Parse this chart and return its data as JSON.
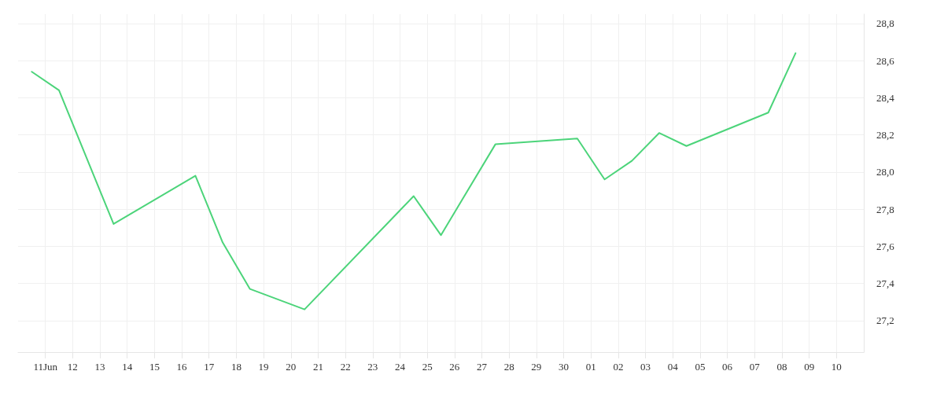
{
  "chart_data": {
    "type": "line",
    "x": [
      "--06-10T12:00",
      "--06-11T12:00",
      "--06-13T12:00",
      "--06-16T12:00",
      "--06-17T12:00",
      "--06-18T12:00",
      "--06-20T12:00",
      "--06-24T12:00",
      "--06-25T12:00",
      "--06-27T12:00",
      "--06-30T12:00",
      "--07-01T12:00",
      "--07-02T12:00",
      "--07-03T12:00",
      "--07-04T12:00",
      "--07-07T12:00",
      "--07-08T12:00"
    ],
    "series": [
      {
        "color": "#4cd47a",
        "values": [
          28.54,
          28.44,
          27.72,
          27.98,
          27.62,
          27.37,
          27.26,
          27.87,
          27.66,
          28.15,
          28.18,
          27.96,
          28.06,
          28.21,
          28.14,
          28.32,
          28.64
        ]
      }
    ],
    "xlim": [
      "--06-10",
      "--07-11"
    ],
    "xticks": [
      {
        "value": "--06-11",
        "label": "11Jun"
      },
      {
        "value": "--06-12",
        "label": "12"
      },
      {
        "value": "--06-13",
        "label": "13"
      },
      {
        "value": "--06-14",
        "label": "14"
      },
      {
        "value": "--06-15",
        "label": "15"
      },
      {
        "value": "--06-16",
        "label": "16"
      },
      {
        "value": "--06-17",
        "label": "17"
      },
      {
        "value": "--06-18",
        "label": "18"
      },
      {
        "value": "--06-19",
        "label": "19"
      },
      {
        "value": "--06-20",
        "label": "20"
      },
      {
        "value": "--06-21",
        "label": "21"
      },
      {
        "value": "--06-22",
        "label": "22"
      },
      {
        "value": "--06-23",
        "label": "23"
      },
      {
        "value": "--06-24",
        "label": "24"
      },
      {
        "value": "--06-25",
        "label": "25"
      },
      {
        "value": "--06-26",
        "label": "26"
      },
      {
        "value": "--06-27",
        "label": "27"
      },
      {
        "value": "--06-28",
        "label": "28"
      },
      {
        "value": "--06-29",
        "label": "29"
      },
      {
        "value": "--06-30",
        "label": "30"
      },
      {
        "value": "--07-01",
        "label": "01"
      },
      {
        "value": "--07-02",
        "label": "02"
      },
      {
        "value": "--07-03",
        "label": "03"
      },
      {
        "value": "--07-04",
        "label": "04"
      },
      {
        "value": "--07-05",
        "label": "05"
      },
      {
        "value": "--07-06",
        "label": "06"
      },
      {
        "value": "--07-07",
        "label": "07"
      },
      {
        "value": "--07-08",
        "label": "08"
      },
      {
        "value": "--07-09",
        "label": "09"
      },
      {
        "value": "--07-10",
        "label": "10"
      }
    ],
    "ylim": [
      27.03,
      28.85
    ],
    "yticks": [
      {
        "value": 27.2,
        "label": "27,2"
      },
      {
        "value": 27.4,
        "label": "27,4"
      },
      {
        "value": 27.6,
        "label": "27,6"
      },
      {
        "value": 27.8,
        "label": "27,8"
      },
      {
        "value": 28.0,
        "label": "28,0"
      },
      {
        "value": 28.2,
        "label": "28,2"
      },
      {
        "value": 28.4,
        "label": "28,4"
      },
      {
        "value": 28.6,
        "label": "28,6"
      },
      {
        "value": 28.8,
        "label": "28,8"
      }
    ],
    "grid": true,
    "marker": "none",
    "line_style": "solid"
  }
}
